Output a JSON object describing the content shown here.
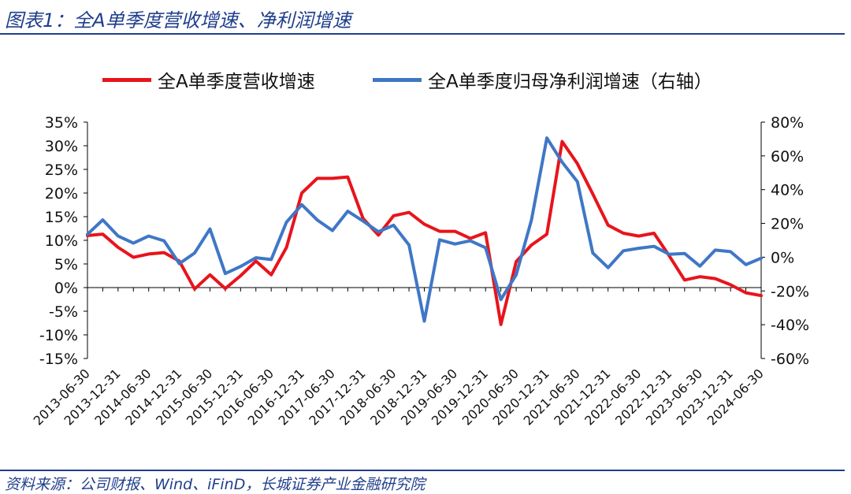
{
  "header": {
    "title": "图表1：全A单季度营收增速、净利润增速"
  },
  "footer": {
    "source": "资料来源：公司财报、Wind、iFinD，长城证券产业金融研究院"
  },
  "chart_data": {
    "type": "line",
    "title": "",
    "legend_placement": "top",
    "grid": false,
    "x_tick_labels": [
      "2013-06-30",
      "2013-12-31",
      "2014-06-30",
      "2014-12-31",
      "2015-06-30",
      "2015-12-31",
      "2016-06-30",
      "2016-12-31",
      "2017-06-30",
      "2017-12-31",
      "2018-06-30",
      "2018-12-31",
      "2019-06-30",
      "2019-12-31",
      "2020-06-30",
      "2020-12-31",
      "2021-06-30",
      "2021-12-31",
      "2022-06-30",
      "2022-12-31",
      "2023-06-30",
      "2023-12-31",
      "2024-06-30"
    ],
    "x": [
      "2013-06-30",
      "2013-09-30",
      "2013-12-31",
      "2014-03-31",
      "2014-06-30",
      "2014-09-30",
      "2014-12-31",
      "2015-03-31",
      "2015-06-30",
      "2015-09-30",
      "2015-12-31",
      "2016-03-31",
      "2016-06-30",
      "2016-09-30",
      "2016-12-31",
      "2017-03-31",
      "2017-06-30",
      "2017-09-30",
      "2017-12-31",
      "2018-03-31",
      "2018-06-30",
      "2018-09-30",
      "2018-12-31",
      "2019-03-31",
      "2019-06-30",
      "2019-09-30",
      "2019-12-31",
      "2020-03-31",
      "2020-06-30",
      "2020-09-30",
      "2020-12-31",
      "2021-03-31",
      "2021-06-30",
      "2021-09-30",
      "2021-12-31",
      "2022-03-31",
      "2022-06-30",
      "2022-09-30",
      "2022-12-31",
      "2023-03-31",
      "2023-06-30",
      "2023-09-30",
      "2023-12-31",
      "2024-03-31",
      "2024-06-30"
    ],
    "y_left": {
      "ticks": [
        "35%",
        "30%",
        "25%",
        "20%",
        "15%",
        "10%",
        "5%",
        "0%",
        "-5%",
        "-10%",
        "-15%"
      ],
      "min": -15,
      "max": 35
    },
    "y_right": {
      "ticks": [
        "80%",
        "60%",
        "40%",
        "20%",
        "0%",
        "-20%",
        "-40%",
        "-60%"
      ],
      "min": -60,
      "max": 80
    },
    "series": [
      {
        "name": "全A单季度营收增速",
        "axis": "left",
        "color": "#e8141b",
        "values": [
          11.0,
          11.3,
          8.5,
          6.4,
          7.1,
          7.4,
          5.6,
          -0.3,
          2.7,
          -0.2,
          2.5,
          5.6,
          2.7,
          8.5,
          20.0,
          23.1,
          23.1,
          23.4,
          14.6,
          11.1,
          15.2,
          15.9,
          13.4,
          11.9,
          11.9,
          10.4,
          11.6,
          -7.8,
          5.5,
          9.0,
          11.3,
          30.9,
          26.2,
          19.8,
          13.2,
          11.5,
          10.9,
          11.5,
          6.7,
          1.6,
          2.3,
          1.9,
          0.6,
          -1.1,
          -1.7
        ]
      },
      {
        "name": "全A单季度归母净利润增速（右轴）",
        "axis": "right",
        "color": "#3f77c6",
        "values": [
          13.6,
          22.1,
          12.5,
          8.3,
          12.5,
          9.7,
          -3.8,
          2.5,
          16.7,
          -9.7,
          -5.5,
          -0.3,
          -1.4,
          20.8,
          31.1,
          22.1,
          15.8,
          27.2,
          21.4,
          15.1,
          18.9,
          7.2,
          -37.9,
          10.3,
          7.8,
          9.7,
          5.6,
          -25.1,
          -10.4,
          22.1,
          70.6,
          56.3,
          44.7,
          2.5,
          -6.2,
          3.8,
          5.3,
          6.4,
          1.7,
          2.2,
          -5.3,
          4.2,
          3.3,
          -4.4,
          -0.6
        ]
      }
    ]
  }
}
